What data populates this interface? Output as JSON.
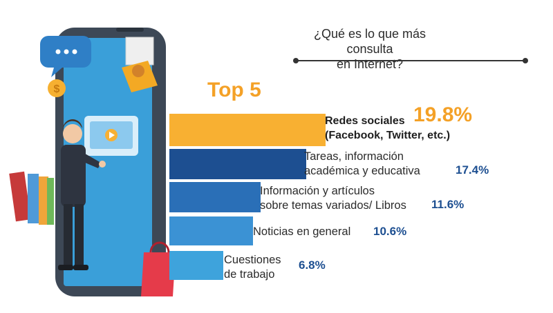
{
  "question": {
    "line1": "¿Qué es lo que más consulta",
    "line2": "en Internet?"
  },
  "heading": "Top 5",
  "colors": {
    "accent": "#f4a127",
    "navy": "#1d4f91",
    "blue": "#2a6fb7",
    "sky": "#3ea3dc"
  },
  "chart_data": {
    "type": "bar",
    "orientation": "horizontal",
    "title": "¿Qué es lo que más consulta en Internet?",
    "subtitle": "Top 5",
    "unit": "%",
    "categories": [
      "Redes sociales (Facebook, Twitter, etc.)",
      "Tareas, información académica y educativa",
      "Información y artículos sobre temas variados/ Libros",
      "Noticias en general",
      "Cuestiones de trabajo"
    ],
    "values": [
      19.8,
      17.4,
      11.6,
      10.6,
      6.8
    ],
    "value_labels": [
      "19.8%",
      "17.4%",
      "11.6%",
      "10.6%",
      "6.8%"
    ],
    "label_lines": [
      [
        "Redes sociales",
        "(Facebook, Twitter, etc.)"
      ],
      [
        "Tareas, información",
        "académica y educativa"
      ],
      [
        "Información y artículos",
        "sobre temas variados/ Libros"
      ],
      [
        "Noticias en general"
      ],
      [
        "Cuestiones",
        "de trabajo"
      ]
    ],
    "bar_colors": [
      "#f8b032",
      "#1d4f91",
      "#2a6fb7",
      "#3b92d4",
      "#3ea3dc"
    ]
  }
}
